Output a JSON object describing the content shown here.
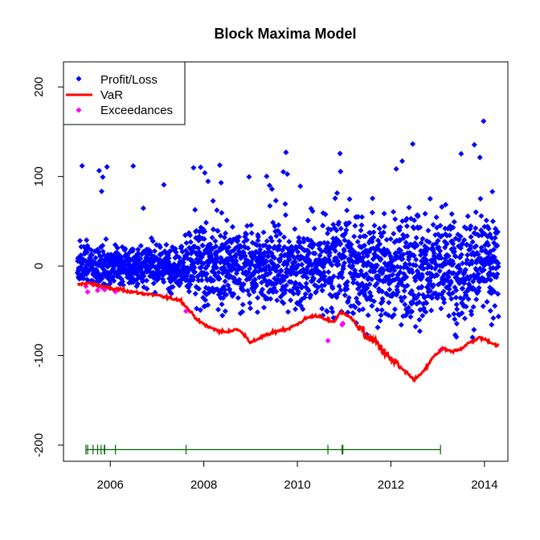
{
  "chart_data": {
    "type": "scatter",
    "title": "Block Maxima Model",
    "xlabel": "",
    "ylabel": "",
    "xlim": [
      2005.0,
      2014.5
    ],
    "ylim": [
      -218,
      228
    ],
    "x_ticks": [
      2006,
      2008,
      2010,
      2012,
      2014
    ],
    "y_ticks": [
      -200,
      -100,
      0,
      100,
      200
    ],
    "x_tick_labels": [
      "2006",
      "2008",
      "2010",
      "2012",
      "2014"
    ],
    "y_tick_labels": [
      "-200",
      "-100",
      "0",
      "100",
      "200"
    ],
    "legend": {
      "position": "top-left",
      "entries": [
        {
          "label": "Profit/Loss",
          "color": "#0000ff",
          "kind": "point"
        },
        {
          "label": "VaR",
          "color": "#ff0000",
          "kind": "line"
        },
        {
          "label": "Exceedances",
          "color": "#ff00ff",
          "kind": "point"
        }
      ]
    },
    "series": [
      {
        "name": "VaR",
        "kind": "line",
        "color": "#ff0000",
        "x": [
          2005.3,
          2005.5,
          2005.8,
          2006.0,
          2006.3,
          2006.6,
          2006.9,
          2007.2,
          2007.5,
          2007.7,
          2007.9,
          2008.1,
          2008.3,
          2008.5,
          2008.7,
          2008.9,
          2009.0,
          2009.2,
          2009.4,
          2009.6,
          2009.8,
          2010.0,
          2010.2,
          2010.4,
          2010.6,
          2010.8,
          2010.9,
          2011.1,
          2011.3,
          2011.5,
          2011.7,
          2011.9,
          2012.1,
          2012.3,
          2012.5,
          2012.7,
          2012.9,
          2013.1,
          2013.3,
          2013.5,
          2013.7,
          2013.9,
          2014.1,
          2014.3
        ],
        "values": [
          -21,
          -19,
          -22,
          -25,
          -27,
          -30,
          -32,
          -35,
          -38,
          -50,
          -62,
          -68,
          -72,
          -74,
          -70,
          -78,
          -86,
          -80,
          -76,
          -72,
          -70,
          -65,
          -58,
          -55,
          -60,
          -62,
          -52,
          -55,
          -68,
          -80,
          -85,
          -100,
          -108,
          -118,
          -127,
          -118,
          -102,
          -92,
          -96,
          -92,
          -85,
          -80,
          -84,
          -90
        ]
      },
      {
        "name": "Profit/Loss",
        "kind": "points",
        "color": "#0000ff"
      },
      {
        "name": "Exceedances",
        "kind": "points",
        "color": "#ff00ff"
      }
    ],
    "exceedance_rug_y": -205,
    "rug_color": "#006400"
  }
}
